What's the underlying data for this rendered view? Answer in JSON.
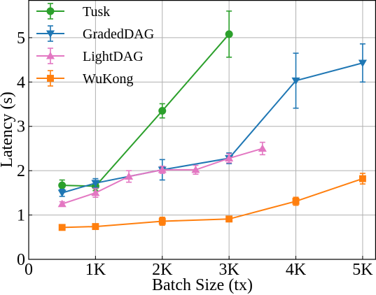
{
  "chart_data": {
    "type": "line",
    "title": "",
    "xlabel": "Batch Size (tx)",
    "ylabel": "Latency (s)",
    "xlim": [
      0,
      5200
    ],
    "ylim": [
      0,
      5.85
    ],
    "xticks": [
      {
        "value": 0,
        "label": "0"
      },
      {
        "value": 1000,
        "label": "1K"
      },
      {
        "value": 2000,
        "label": "2K"
      },
      {
        "value": 3000,
        "label": "3K"
      },
      {
        "value": 4000,
        "label": "4K"
      },
      {
        "value": 5000,
        "label": "5K"
      }
    ],
    "yticks": [
      {
        "value": 0,
        "label": "0"
      },
      {
        "value": 1,
        "label": "1"
      },
      {
        "value": 2,
        "label": "2"
      },
      {
        "value": 3,
        "label": "3"
      },
      {
        "value": 4,
        "label": "4"
      },
      {
        "value": 5,
        "label": "5"
      }
    ],
    "grid": true,
    "legend_position": "top-left",
    "series": [
      {
        "name": "Tusk",
        "color": "#2ca02c",
        "marker": "circle",
        "x": [
          500,
          1000,
          2000,
          3000
        ],
        "y": [
          1.67,
          1.65,
          3.35,
          5.08
        ],
        "err": [
          0.12,
          0.1,
          0.16,
          0.52
        ]
      },
      {
        "name": "GradedDAG",
        "color": "#1f77b4",
        "marker": "triangle-down",
        "x": [
          500,
          1000,
          2000,
          3000,
          4000,
          5000
        ],
        "y": [
          1.5,
          1.72,
          2.02,
          2.28,
          4.03,
          4.43
        ],
        "err": [
          0.08,
          0.1,
          0.23,
          0.12,
          0.62,
          0.43
        ]
      },
      {
        "name": "LightDAG",
        "color": "#e377c2",
        "marker": "triangle-up",
        "x": [
          500,
          1000,
          1500,
          2000,
          2500,
          3000,
          3500
        ],
        "y": [
          1.25,
          1.5,
          1.87,
          2.02,
          2.02,
          2.28,
          2.5
        ],
        "err": [
          0.05,
          0.1,
          0.13,
          0.08,
          0.1,
          0.1,
          0.14
        ]
      },
      {
        "name": "WuKong",
        "color": "#ff7f0e",
        "marker": "square",
        "x": [
          500,
          1000,
          2000,
          3000,
          4000,
          5000
        ],
        "y": [
          0.72,
          0.74,
          0.86,
          0.91,
          1.31,
          1.82
        ],
        "err": [
          0.03,
          0.04,
          0.09,
          0.04,
          0.09,
          0.12
        ]
      }
    ]
  }
}
